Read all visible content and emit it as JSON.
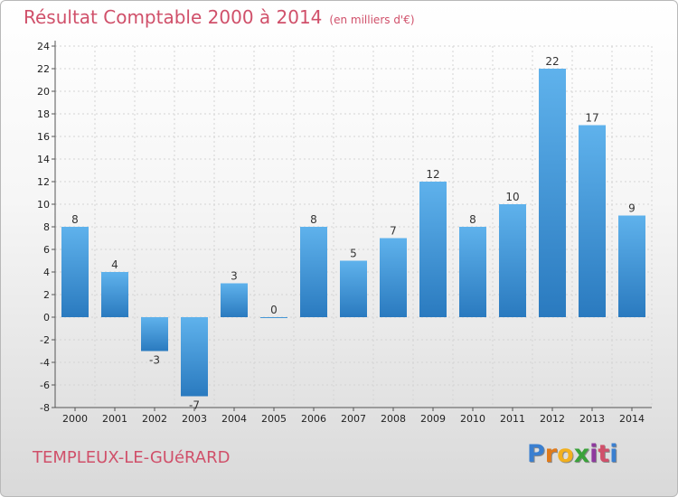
{
  "header": {
    "title": "Résultat Comptable 2000 à 2014",
    "subtitle": "(en milliers d'€)"
  },
  "footer": {
    "place": "TEMPLEUX-LE-GUéRARD",
    "logo": [
      "P",
      "r",
      "o",
      "x",
      "i",
      "t",
      "i"
    ],
    "logo_colors": [
      "#3a7fd0",
      "#e07a1a",
      "#f2b01e",
      "#3aa23a",
      "#8e3a9e",
      "#d0506a",
      "#3a7fd0"
    ]
  },
  "chart_data": {
    "type": "bar",
    "title": "Résultat Comptable 2000 à 2014",
    "subtitle": "(en milliers d'€)",
    "xlabel": "",
    "ylabel": "",
    "categories": [
      "2000",
      "2001",
      "2002",
      "2003",
      "2004",
      "2005",
      "2006",
      "2007",
      "2008",
      "2009",
      "2010",
      "2011",
      "2012",
      "2013",
      "2014"
    ],
    "values": [
      8,
      4,
      -3,
      -7,
      3,
      0,
      8,
      5,
      7,
      12,
      8,
      10,
      22,
      17,
      9
    ],
    "ylim": [
      -8,
      24
    ],
    "yticks": [
      -8,
      -6,
      -4,
      -2,
      0,
      2,
      4,
      6,
      8,
      10,
      12,
      14,
      16,
      18,
      20,
      22,
      24
    ],
    "grid": true,
    "bar_color": "#3a8fd6"
  }
}
